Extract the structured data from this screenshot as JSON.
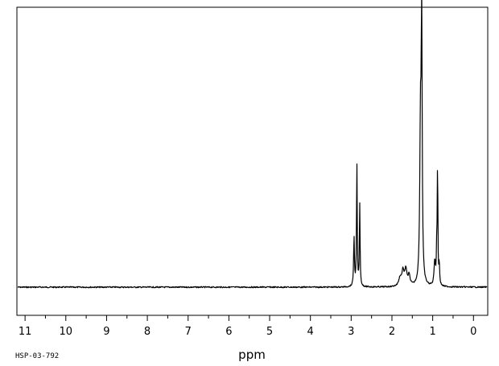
{
  "chart_data": {
    "type": "line",
    "title": "",
    "xlabel": "ppm",
    "ylabel": "",
    "spectrum_code": "HSP-03-792",
    "xlim": [
      11.2,
      -0.35
    ],
    "x_reversed": true,
    "ylim": [
      0,
      1
    ],
    "grid": false,
    "tick_labels": [
      "11",
      "10",
      "9",
      "8",
      "7",
      "6",
      "5",
      "4",
      "3",
      "2",
      "1",
      "0"
    ],
    "series": [
      {
        "peaks": [
          {
            "shift": 2.93,
            "intensity": 0.12,
            "width": 0.012
          },
          {
            "shift": 2.86,
            "intensity": 0.3,
            "width": 0.01
          },
          {
            "shift": 2.79,
            "intensity": 0.2,
            "width": 0.01
          },
          {
            "shift": 1.8,
            "intensity": 0.02,
            "width": 0.04
          },
          {
            "shift": 1.73,
            "intensity": 0.035,
            "width": 0.03
          },
          {
            "shift": 1.66,
            "intensity": 0.04,
            "width": 0.03
          },
          {
            "shift": 1.58,
            "intensity": 0.025,
            "width": 0.03
          },
          {
            "shift": 1.3,
            "intensity": 0.38,
            "width": 0.02
          },
          {
            "shift": 1.27,
            "intensity": 0.62,
            "width": 0.014
          },
          {
            "shift": 0.95,
            "intensity": 0.06,
            "width": 0.02
          },
          {
            "shift": 0.9,
            "intensity": 0.09,
            "width": 0.012
          },
          {
            "shift": 0.88,
            "intensity": 0.3,
            "width": 0.008
          },
          {
            "shift": 0.84,
            "intensity": 0.05,
            "width": 0.012
          }
        ]
      }
    ]
  }
}
